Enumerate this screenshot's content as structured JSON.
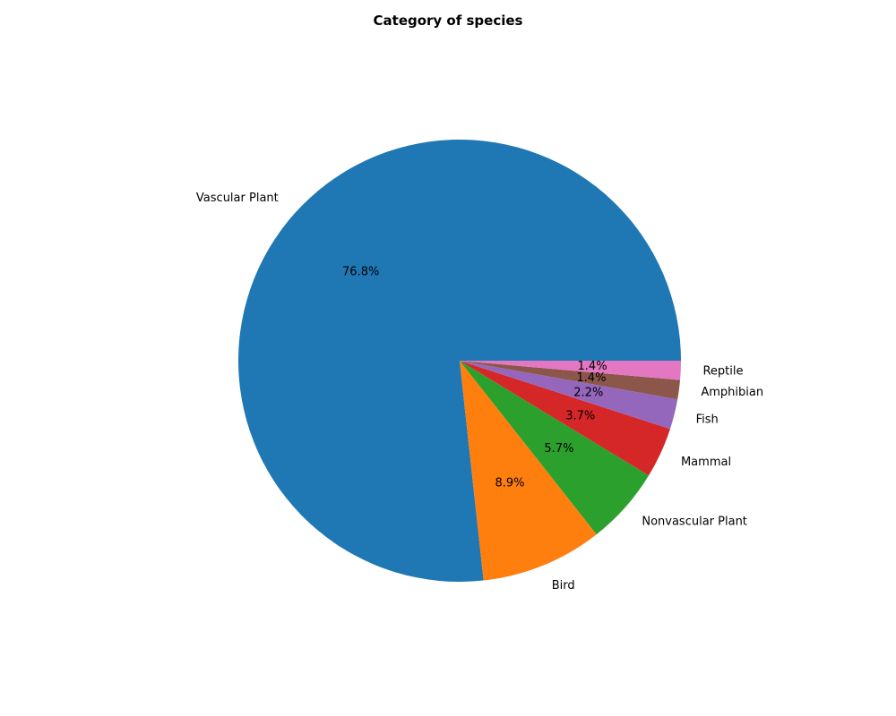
{
  "chart_data": {
    "type": "pie",
    "title": "Category of species",
    "start_angle_deg": 0,
    "direction": "counterclockwise",
    "slices": [
      {
        "label": "Vascular Plant",
        "pct_label": "76.8%",
        "value": 76.8,
        "color": "#1f77b4"
      },
      {
        "label": "Bird",
        "pct_label": "8.9%",
        "value": 8.9,
        "color": "#ff7f0e"
      },
      {
        "label": "Nonvascular Plant",
        "pct_label": "5.7%",
        "value": 5.7,
        "color": "#2ca02c"
      },
      {
        "label": "Mammal",
        "pct_label": "3.7%",
        "value": 3.7,
        "color": "#d62728"
      },
      {
        "label": "Fish",
        "pct_label": "2.2%",
        "value": 2.2,
        "color": "#9467bd"
      },
      {
        "label": "Amphibian",
        "pct_label": "1.4%",
        "value": 1.4,
        "color": "#8c564b"
      },
      {
        "label": "Reptile",
        "pct_label": "1.4%",
        "value": 1.4,
        "color": "#e377c2"
      }
    ]
  }
}
